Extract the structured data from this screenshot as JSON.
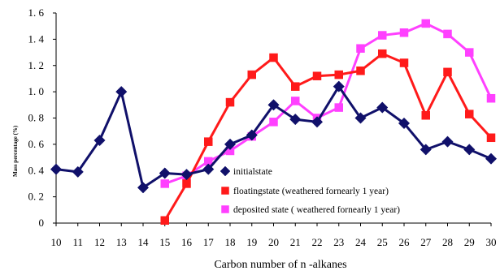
{
  "chart_data": {
    "type": "line",
    "title": "",
    "xlabel": "Carbon number of n    -alkanes",
    "ylabel": "Mass percentage (%)",
    "xlim": [
      10,
      30
    ],
    "ylim": [
      0,
      1.6
    ],
    "grid": false,
    "legend_position": "bottom-right",
    "x_ticks": [
      10,
      11,
      12,
      13,
      14,
      15,
      16,
      17,
      18,
      19,
      20,
      21,
      22,
      23,
      24,
      25,
      26,
      27,
      28,
      29,
      30
    ],
    "y_ticks": [
      0,
      0.2,
      0.4,
      0.6,
      0.8,
      1.0,
      1.2,
      1.4,
      1.6
    ],
    "y_tick_labels": [
      "0",
      "0. 2",
      "0. 4",
      "0. 6",
      "0. 8",
      "1. 0",
      "1. 2",
      "1. 4",
      "1. 6"
    ],
    "series": [
      {
        "name": "initialstate",
        "color": "#10106a",
        "marker": "diamond",
        "x": [
          10,
          11,
          12,
          13,
          14,
          15,
          16,
          17,
          18,
          19,
          20,
          21,
          22,
          23,
          24,
          25,
          26,
          27,
          28,
          29,
          30
        ],
        "values": [
          0.41,
          0.39,
          0.63,
          1.0,
          0.27,
          0.38,
          0.37,
          0.41,
          0.6,
          0.67,
          0.9,
          0.79,
          0.77,
          1.04,
          0.8,
          0.88,
          0.76,
          0.56,
          0.62,
          0.56,
          0.49
        ]
      },
      {
        "name": "floatingstate (weathered fornearly 1 year)",
        "color": "#ff1a1a",
        "marker": "square",
        "x": [
          15,
          16,
          17,
          18,
          19,
          20,
          21,
          22,
          23,
          24,
          25,
          26,
          27,
          28,
          29,
          30
        ],
        "values": [
          0.02,
          0.3,
          0.62,
          0.92,
          1.13,
          1.26,
          1.04,
          1.12,
          1.13,
          1.16,
          1.29,
          1.22,
          0.82,
          1.15,
          0.83,
          0.65
        ]
      },
      {
        "name": "deposited state ( weathered fornearly 1 year)",
        "color": "#ff40ff",
        "marker": "square",
        "x": [
          15,
          16,
          17,
          18,
          19,
          20,
          21,
          22,
          23,
          24,
          25,
          26,
          27,
          28,
          29,
          30
        ],
        "values": [
          0.3,
          0.36,
          0.47,
          0.55,
          0.66,
          0.77,
          0.93,
          0.8,
          0.88,
          1.33,
          1.43,
          1.45,
          1.52,
          1.44,
          1.3,
          0.95
        ]
      }
    ]
  }
}
